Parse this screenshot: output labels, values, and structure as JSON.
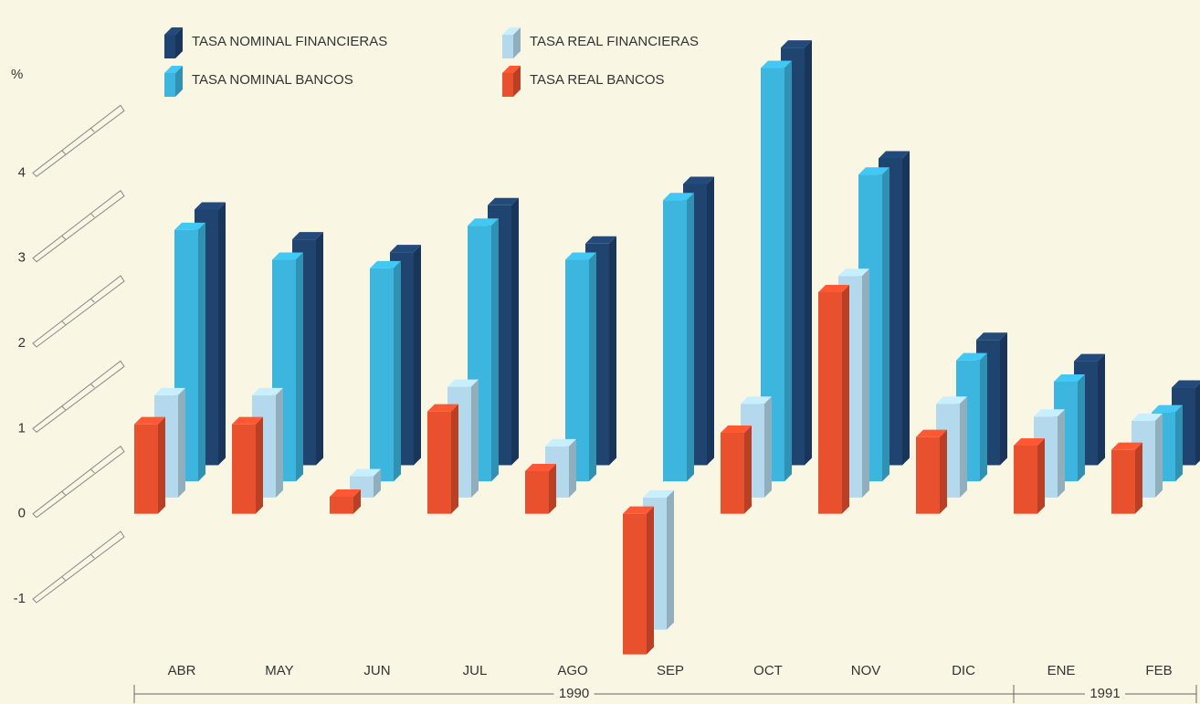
{
  "chart_data": {
    "type": "bar3d",
    "y_axis_label": "%",
    "categories": [
      "ABR",
      "MAY",
      "JUN",
      "JUL",
      "AGO",
      "SEP",
      "OCT",
      "NOV",
      "DIC",
      "ENE",
      "FEB"
    ],
    "periods": [
      {
        "label": "1990",
        "categories": 9
      },
      {
        "label": "1991",
        "categories": 2
      }
    ],
    "series": [
      {
        "name": "TASA REAL BANCOS",
        "color": "#e8502e",
        "values": [
          1.05,
          1.05,
          0.2,
          1.2,
          0.5,
          -1.65,
          0.95,
          2.6,
          0.9,
          0.8,
          0.75
        ]
      },
      {
        "name": "TASA REAL FINANCIERAS",
        "color": "#b5d9ec",
        "values": [
          1.2,
          1.2,
          0.25,
          1.3,
          0.6,
          -1.55,
          1.1,
          2.6,
          1.1,
          0.95,
          0.9
        ]
      },
      {
        "name": "TASA NOMINAL BANCOS",
        "color": "#3cb6df",
        "values": [
          2.95,
          2.6,
          2.5,
          3.0,
          2.6,
          3.3,
          4.85,
          3.6,
          1.42,
          1.17,
          0.81
        ]
      },
      {
        "name": "TASA NOMINAL FINANCIERAS",
        "color": "#1f4470",
        "values": [
          3.0,
          2.65,
          2.5,
          3.05,
          2.6,
          3.3,
          4.9,
          3.6,
          1.47,
          1.22,
          0.91
        ]
      }
    ],
    "legend_order": [
      3,
      1,
      2,
      0
    ],
    "ylim": [
      -1.75,
      5.6
    ],
    "yticks": [
      -1,
      0,
      1,
      2,
      3,
      4
    ]
  }
}
